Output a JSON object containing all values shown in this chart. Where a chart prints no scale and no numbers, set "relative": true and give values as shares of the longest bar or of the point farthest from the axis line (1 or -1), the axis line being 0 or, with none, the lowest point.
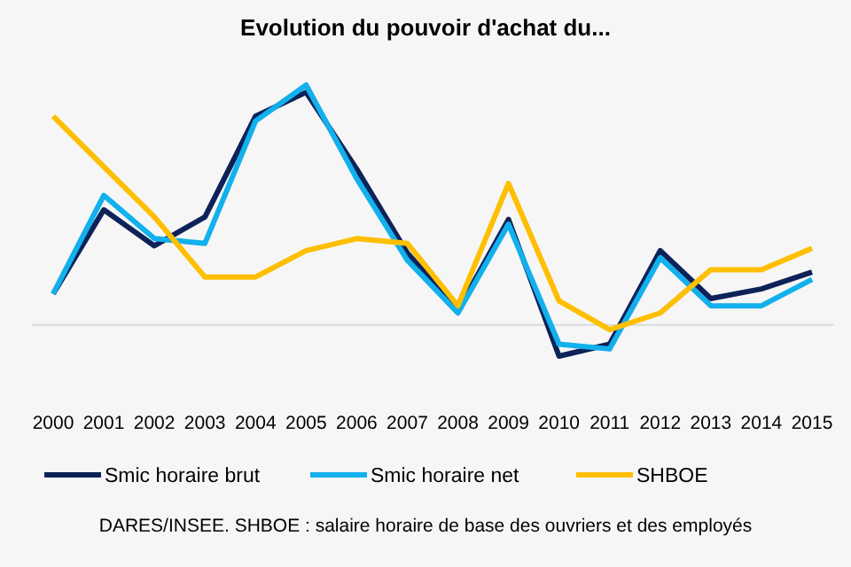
{
  "chart_data": {
    "type": "line",
    "title": "Evolution du pouvoir d'achat du...",
    "relative": true,
    "legend": "bottom",
    "line_style": "solid",
    "categories": [
      "2000",
      "2001",
      "2002",
      "2003",
      "2004",
      "2005",
      "2006",
      "2007",
      "2008",
      "2009",
      "2010",
      "2011",
      "2012",
      "2013",
      "2014",
      "2015"
    ],
    "series": [
      {
        "name": "Smic horaire brut",
        "color": "#0d2258",
        "values": [
          0.13,
          0.48,
          0.33,
          0.45,
          0.87,
          0.97,
          0.65,
          0.3,
          0.06,
          0.44,
          -0.13,
          -0.08,
          0.31,
          0.11,
          0.15,
          0.22
        ]
      },
      {
        "name": "Smic horaire net",
        "color": "#12b0ec",
        "values": [
          0.13,
          0.54,
          0.36,
          0.34,
          0.85,
          1.0,
          0.61,
          0.27,
          0.05,
          0.42,
          -0.08,
          -0.1,
          0.28,
          0.08,
          0.08,
          0.19
        ]
      },
      {
        "name": "SHBOE",
        "color": "#fdbf00",
        "values": [
          0.87,
          0.66,
          0.45,
          0.2,
          0.2,
          0.31,
          0.36,
          0.34,
          0.08,
          0.59,
          0.1,
          -0.02,
          0.05,
          0.23,
          0.23,
          0.32
        ]
      }
    ],
    "annotations": [
      "DARES/INSEE. SHBOE : salaire horaire de base des ouvriers et des employés"
    ]
  }
}
